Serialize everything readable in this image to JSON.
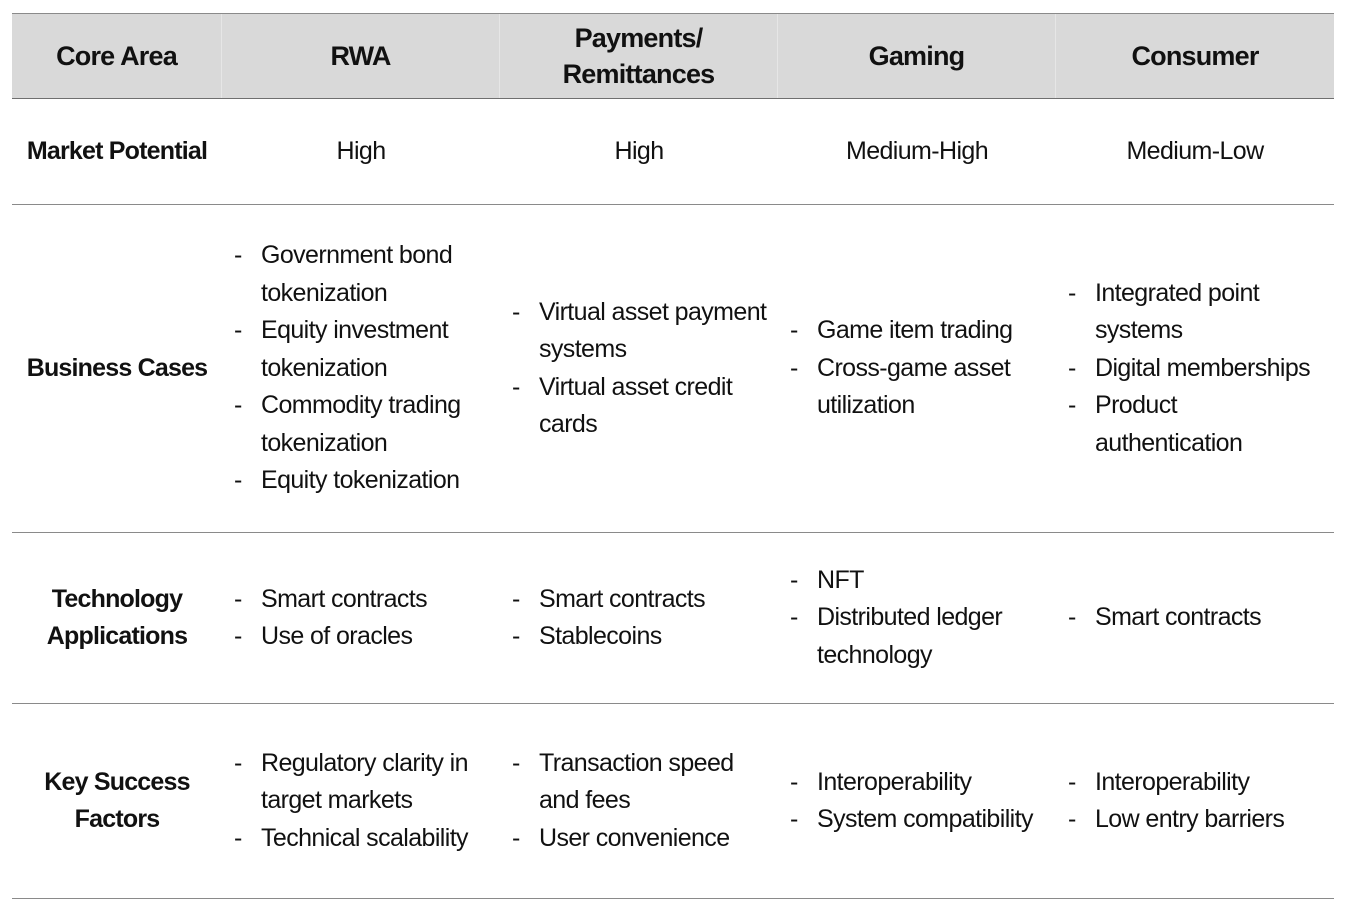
{
  "header": {
    "core_area": "Core Area",
    "columns": [
      "RWA",
      "Payments/ Remittances",
      "Gaming",
      "Consumer"
    ]
  },
  "rows": {
    "market_potential": {
      "label": "Market Potential",
      "values": [
        "High",
        "High",
        "Medium-High",
        "Medium-Low"
      ]
    },
    "business_cases": {
      "label": "Business Cases",
      "cells": [
        [
          "Government bond tokenization",
          "Equity investment tokenization",
          "Commodity trading tokenization",
          "Equity tokenization"
        ],
        [
          "Virtual asset payment systems",
          "Virtual asset credit cards"
        ],
        [
          "Game item trading",
          "Cross-game asset utilization"
        ],
        [
          "Integrated point systems",
          "Digital memberships",
          "Product authentication"
        ]
      ]
    },
    "technology_applications": {
      "label": "Technology Applications",
      "cells": [
        [
          "Smart contracts",
          "Use of oracles"
        ],
        [
          "Smart contracts",
          "Stablecoins"
        ],
        [
          "NFT",
          "Distributed ledger technology"
        ],
        [
          "Smart contracts"
        ]
      ]
    },
    "key_success_factors": {
      "label": "Key Success Factors",
      "cells": [
        [
          "Regulatory clarity in target markets",
          "Technical scalability"
        ],
        [
          "Transaction speed and fees",
          "User convenience"
        ],
        [
          "Interoperability",
          "System compatibility"
        ],
        [
          "Interoperability",
          "Low entry barriers"
        ]
      ]
    }
  }
}
